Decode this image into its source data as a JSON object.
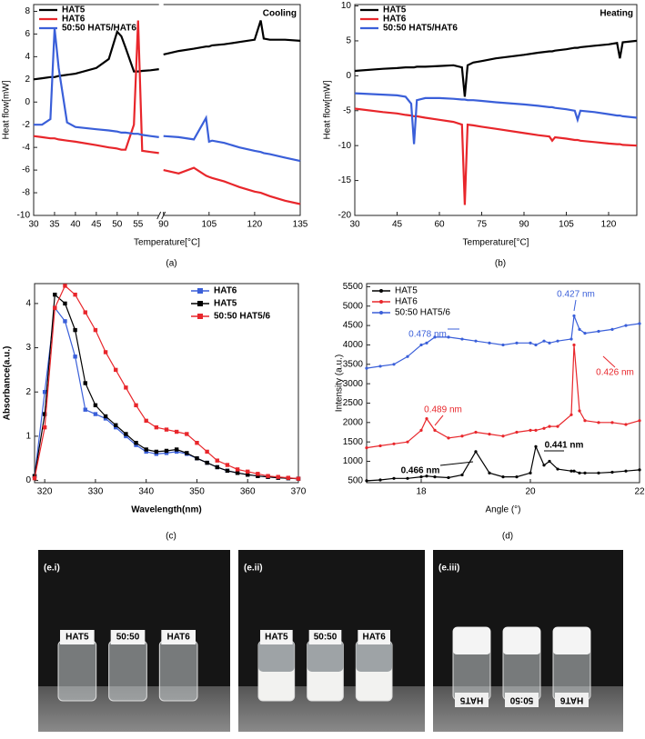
{
  "chart_data": [
    {
      "type": "line",
      "panel_label": "(a)",
      "annotation": "Cooling",
      "xlabel": "Temperature[°C]",
      "ylabel": "Heat flow[mW]",
      "xlim": [
        30,
        135
      ],
      "xbreak": [
        60,
        90
      ],
      "xticks": [
        30,
        35,
        40,
        45,
        50,
        55,
        90,
        105,
        120,
        135
      ],
      "ylim": [
        -10,
        8.6
      ],
      "yticks": [
        -10,
        -8,
        -6,
        -4,
        -2,
        0,
        2,
        4,
        6,
        8
      ],
      "legend": "upper left",
      "x": [
        30,
        32,
        34,
        35,
        36,
        38,
        40,
        45,
        48,
        50,
        51,
        52,
        54,
        55,
        56,
        58,
        60,
        90,
        95,
        100,
        104,
        105,
        106,
        110,
        115,
        120,
        122,
        123,
        125,
        130,
        135
      ],
      "series": [
        {
          "name": "HAT5",
          "color": "#000000",
          "values": [
            2,
            2.1,
            2.2,
            2.2,
            2.3,
            2.4,
            2.5,
            3,
            3.8,
            6.2,
            5.8,
            4.8,
            2.7,
            2.7,
            2.75,
            2.8,
            2.9,
            4.2,
            4.5,
            4.7,
            4.9,
            4.9,
            5,
            5.1,
            5.3,
            5.5,
            7.2,
            5.6,
            5.5,
            5.5,
            5.4
          ]
        },
        {
          "name": "HAT6",
          "color": "#e8262b",
          "values": [
            -3,
            -3.1,
            -3.2,
            -3.2,
            -3.3,
            -3.4,
            -3.5,
            -3.8,
            -4,
            -4.1,
            -4.2,
            -4.2,
            -2,
            7.2,
            -4.3,
            -4.4,
            -4.5,
            -6,
            -6.3,
            -5.8,
            -6.5,
            -6.6,
            -6.7,
            -7,
            -7.5,
            -7.9,
            -8,
            -8.1,
            -8.3,
            -8.7,
            -9
          ]
        },
        {
          "name": "50:50 HAT5/HAT6",
          "color": "#3a5fd9",
          "values": [
            -2,
            -2,
            -1.5,
            6.5,
            3,
            -1.8,
            -2.2,
            -2.4,
            -2.5,
            -2.6,
            -2.7,
            -2.7,
            -2.8,
            -2.8,
            -2.9,
            -3,
            -3.1,
            -3,
            -3.1,
            -3.3,
            -1.4,
            -3.5,
            -3.4,
            -3.6,
            -4,
            -4.3,
            -4.4,
            -4.5,
            -4.6,
            -4.9,
            -5.2
          ]
        }
      ]
    },
    {
      "type": "line",
      "panel_label": "(b)",
      "annotation": "Heating",
      "xlabel": "Temperature[°C]",
      "ylabel": "Heat flow[mW]",
      "xlim": [
        30,
        130
      ],
      "xticks": [
        30,
        45,
        60,
        75,
        90,
        105,
        120
      ],
      "ylim": [
        -20,
        10.2
      ],
      "yticks": [
        -20,
        -15,
        -10,
        -5,
        0,
        5,
        10
      ],
      "legend": "upper left",
      "x": [
        30,
        40,
        45,
        48,
        50,
        51,
        52,
        55,
        60,
        65,
        68,
        69,
        70,
        72,
        75,
        80,
        90,
        95,
        99,
        100,
        101,
        105,
        108,
        109,
        110,
        115,
        120,
        123,
        124,
        125,
        130
      ],
      "series": [
        {
          "name": "HAT5",
          "color": "#000000",
          "values": [
            0.7,
            1.0,
            1.1,
            1.2,
            1.2,
            1.2,
            1.3,
            1.3,
            1.4,
            1.5,
            1.2,
            -3,
            1.5,
            1.9,
            2.1,
            2.5,
            3,
            3.3,
            3.5,
            3.5,
            3.6,
            3.8,
            4,
            4,
            4.1,
            4.3,
            4.5,
            4.7,
            2.5,
            4.8,
            5
          ]
        },
        {
          "name": "HAT6",
          "color": "#e8262b",
          "values": [
            -4.7,
            -5.2,
            -5.4,
            -5.6,
            -5.7,
            -5.8,
            -5.8,
            -6,
            -6.3,
            -6.6,
            -7,
            -18.5,
            -7,
            -7.1,
            -7.3,
            -7.6,
            -8.2,
            -8.5,
            -8.7,
            -9.3,
            -8.8,
            -9,
            -9.2,
            -9.2,
            -9.3,
            -9.5,
            -9.7,
            -9.8,
            -9.8,
            -9.9,
            -10
          ]
        },
        {
          "name": "50:50 HAT5/HAT6",
          "color": "#3a5fd9",
          "values": [
            -2.5,
            -2.7,
            -2.8,
            -3,
            -4,
            -9.8,
            -3.5,
            -3.2,
            -3.2,
            -3.3,
            -3.4,
            -3.4,
            -3.5,
            -3.5,
            -3.6,
            -3.8,
            -4.1,
            -4.3,
            -4.5,
            -4.5,
            -4.6,
            -4.8,
            -5,
            -6.3,
            -5,
            -5.2,
            -5.5,
            -5.7,
            -5.7,
            -5.8,
            -6
          ]
        }
      ]
    },
    {
      "type": "line",
      "panel_label": "(c)",
      "xlabel": "Wavelength(nm)",
      "ylabel": "Absorbance(a.u.)",
      "marker": "square",
      "xlim": [
        318,
        370
      ],
      "xticks": [
        320,
        330,
        340,
        350,
        360,
        370
      ],
      "ylim": [
        -0.05,
        4.45
      ],
      "yticks": [
        0,
        1,
        2,
        3,
        4
      ],
      "legend": "upper right",
      "x": [
        318,
        320,
        322,
        324,
        326,
        328,
        330,
        332,
        334,
        336,
        338,
        340,
        342,
        344,
        346,
        348,
        350,
        352,
        354,
        356,
        358,
        360,
        362,
        364,
        366,
        368,
        370
      ],
      "series": [
        {
          "name": "HAT6",
          "color": "#3a5fd9",
          "values": [
            0.1,
            2,
            3.9,
            3.6,
            2.8,
            1.6,
            1.5,
            1.4,
            1.2,
            1.0,
            0.8,
            0.65,
            0.6,
            0.62,
            0.65,
            0.6,
            0.5,
            0.4,
            0.3,
            0.22,
            0.17,
            0.13,
            0.1,
            0.08,
            0.06,
            0.05,
            0.04
          ]
        },
        {
          "name": "HAT5",
          "color": "#000000",
          "values": [
            0.1,
            1.5,
            4.2,
            4.0,
            3.4,
            2.2,
            1.7,
            1.45,
            1.25,
            1.05,
            0.85,
            0.7,
            0.65,
            0.67,
            0.7,
            0.62,
            0.5,
            0.4,
            0.3,
            0.22,
            0.17,
            0.13,
            0.1,
            0.08,
            0.06,
            0.05,
            0.04
          ]
        },
        {
          "name": "50:50 HAT5/6",
          "color": "#e8262b",
          "values": [
            0.05,
            1.2,
            3.9,
            4.4,
            4.2,
            3.8,
            3.4,
            2.9,
            2.5,
            2.1,
            1.7,
            1.35,
            1.2,
            1.15,
            1.1,
            1.05,
            0.85,
            0.65,
            0.45,
            0.35,
            0.25,
            0.2,
            0.15,
            0.1,
            0.08,
            0.06,
            0.04
          ]
        }
      ]
    },
    {
      "type": "line",
      "panel_label": "(d)",
      "xlabel": "Angle (°)",
      "ylabel": "Intensity (a.u.)",
      "marker": "circle",
      "xlim": [
        17,
        22
      ],
      "xticks": [
        18,
        20,
        22
      ],
      "ylim": [
        450,
        5580
      ],
      "yticks": [
        500,
        1000,
        1500,
        2000,
        2500,
        3000,
        3500,
        4000,
        4500,
        5000,
        5500
      ],
      "legend": "upper left",
      "x": [
        17,
        17.25,
        17.5,
        17.75,
        18,
        18.1,
        18.25,
        18.5,
        18.75,
        19,
        19.25,
        19.5,
        19.75,
        20,
        20.1,
        20.25,
        20.35,
        20.5,
        20.75,
        20.8,
        20.9,
        21,
        21.25,
        21.5,
        21.75,
        22
      ],
      "series": [
        {
          "name": "HAT5",
          "color": "#000000",
          "values": [
            500,
            520,
            560,
            560,
            600,
            620,
            600,
            580,
            650,
            1250,
            700,
            600,
            600,
            700,
            1380,
            900,
            1000,
            800,
            750,
            750,
            700,
            700,
            700,
            720,
            750,
            780
          ]
        },
        {
          "name": "HAT6",
          "color": "#e8262b",
          "values": [
            1350,
            1400,
            1450,
            1500,
            1800,
            2100,
            1800,
            1600,
            1650,
            1750,
            1700,
            1650,
            1750,
            1800,
            1800,
            1850,
            1900,
            1900,
            2200,
            4000,
            2300,
            2050,
            2000,
            2000,
            1950,
            2050
          ]
        },
        {
          "name": "50:50 HAT5/6",
          "color": "#3a5fd9",
          "values": [
            3400,
            3450,
            3500,
            3700,
            4000,
            4050,
            4200,
            4200,
            4150,
            4100,
            4050,
            4000,
            4050,
            4050,
            4000,
            4100,
            4050,
            4100,
            4150,
            4750,
            4400,
            4300,
            4350,
            4400,
            4500,
            4550
          ]
        }
      ],
      "annotations": [
        {
          "text": "0.427 nm",
          "color": "#3a5fd9"
        },
        {
          "text": "0.478 nm",
          "color": "#3a5fd9"
        },
        {
          "text": "0.426 nm",
          "color": "#e8262b"
        },
        {
          "text": "0.489 nm",
          "color": "#e8262b"
        },
        {
          "text": "0.466 nm",
          "color": "#000000"
        },
        {
          "text": "0.441 nm",
          "color": "#000000"
        }
      ]
    }
  ],
  "photos": [
    {
      "label": "(e.i)",
      "vials": [
        "HAT5",
        "50:50",
        "HAT6"
      ]
    },
    {
      "label": "(e.ii)",
      "vials": [
        "HAT5",
        "50:50",
        "HAT6"
      ]
    },
    {
      "label": "(e.iii)",
      "vials": [
        "HAT5",
        "50:50",
        "HAT6"
      ]
    }
  ]
}
